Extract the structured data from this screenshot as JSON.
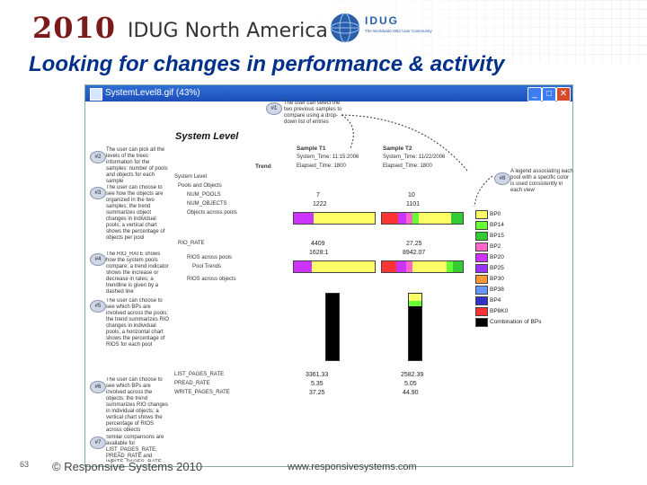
{
  "header": {
    "year": "2010",
    "conference": "IDUG North America",
    "logo_text": "IDUG",
    "logo_tagline": "The Worldwide DB2 User Community"
  },
  "slide": {
    "title": "Looking for changes in performance & activity",
    "page_number": "63",
    "copyright": "© Responsive Systems 2010",
    "url": "www.responsivesystems.com"
  },
  "window": {
    "title": "SystemLevel8.gif (43%)",
    "minimize": "_",
    "maximize": "□",
    "close": "✕"
  },
  "view": {
    "heading": "System Level",
    "trend_label": "Trend",
    "sample1": {
      "label": "Sample T1",
      "time": "System_Time: 11:15:2006",
      "elapsed": "Elapsed_Time: 1800"
    },
    "sample2": {
      "label": "Sample T2",
      "time": "System_Time: 11/22/2006",
      "elapsed": "Elapsed_Time: 1800"
    },
    "tree": {
      "root": "System Level",
      "pools": "Pools and Objects",
      "num_pools": "NUM_POOLS",
      "num_obj": "NUM_OBJECTS",
      "objects_across": "Objects across pools",
      "rio_rate": "RIO_RATE",
      "rio_rios": "RIOS across pools",
      "pool_trends": "Pool Trends",
      "rios_objects": "RIOS across objects",
      "list_rate": "LIST_PAGES_RATE",
      "pread_rate": "PREAD_RATE",
      "write_rate": "WRITE_PAGES_RATE"
    },
    "values_t1": {
      "num_pools": "7",
      "num_obj": "1222",
      "rio": "4409",
      "rio2": "1628:1",
      "list": "3361.33",
      "pread": "5.35",
      "write": "37.25"
    },
    "values_t2": {
      "num_pools": "10",
      "num_obj": "1101",
      "rio": "27.25",
      "rio2": "8942.07",
      "list": "2582.39",
      "pread": "5.05",
      "write": "44.90"
    }
  },
  "callouts": [
    {
      "id": "#1",
      "text": "The user can select the two previous samples to compare using a drop-down list of entries"
    },
    {
      "id": "#2",
      "text": "The user can pick all the levels of the trees information for the samples: number of pools and objects for each sample"
    },
    {
      "id": "#3",
      "text": "The user can choose to see how the objects are organized in the two samples; the trend summarizes object changes in individual pools; a vertical chart shows the percentage of objects per pool"
    },
    {
      "id": "#4",
      "text": "The RIO_RATE shows how the system pools compare; a trend indicator shows the increase or decrease in rates; a trendline is given by a dashed line"
    },
    {
      "id": "#5",
      "text": "The user can choose to see which BPs are involved across the pools; the trend summarizes RIO changes in individual pools; a horizontal chart shows the percentage of RIOS for each pool"
    },
    {
      "id": "#6",
      "text": "The user can choose to see which BPs are involved across the objects; the trend summarizes RIO changes in individual objects; a vertical chart shows the percentage of RIOS across objects"
    },
    {
      "id": "#7",
      "text": "Similar comparisons are available for LIST_PAGES_RATE, PREAD_RATE and WRITE_PAGES_RATE"
    },
    {
      "id": "#8",
      "text": "A legend associating each pool with a specific color is used consistently in each view"
    }
  ],
  "legend": [
    {
      "label": "BP0",
      "color": "#ffff66"
    },
    {
      "label": "BP14",
      "color": "#66ff33"
    },
    {
      "label": "BP15",
      "color": "#33cc33"
    },
    {
      "label": "BP2",
      "color": "#ff66cc"
    },
    {
      "label": "BP20",
      "color": "#cc33ff"
    },
    {
      "label": "BP25",
      "color": "#9933ff"
    },
    {
      "label": "BP30",
      "color": "#ff9933"
    },
    {
      "label": "BP38",
      "color": "#6699ff"
    },
    {
      "label": "BP4",
      "color": "#3333cc"
    },
    {
      "label": "BP8K0",
      "color": "#ff3333"
    },
    {
      "label": "Combination of BPs",
      "color": "#000000"
    }
  ],
  "colors": {
    "title_blue": "#00308a",
    "year_red": "#7b1a1a"
  }
}
